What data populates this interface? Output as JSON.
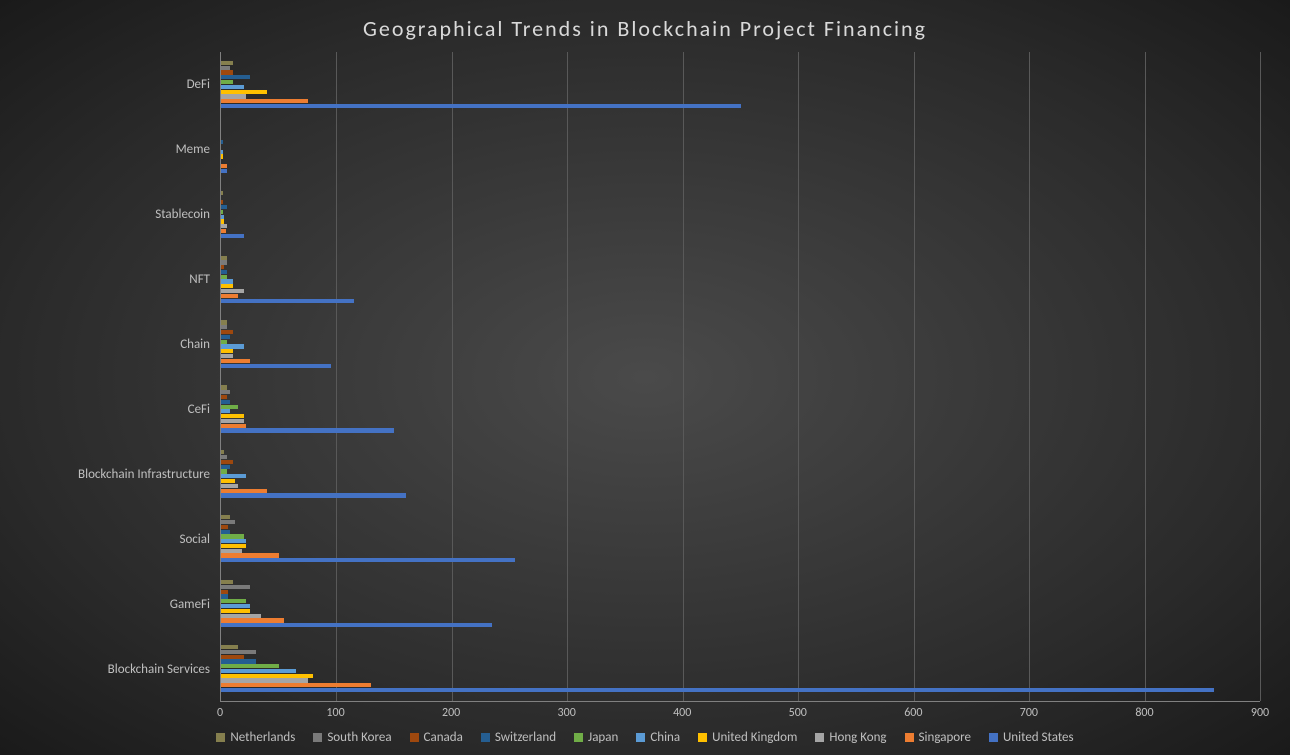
{
  "chart": {
    "type": "grouped-horizontal-bar",
    "title": "Geographical Trends in Blockchain Project Financing",
    "title_fontsize": 22,
    "title_color": "#d9d9d9",
    "background": "radial-gradient(#4a4a4a,#1a1a1a)",
    "grid_color": "#595959",
    "axis_color": "#808080",
    "tick_font_color": "#bfbfbf",
    "tick_fontsize": 12,
    "label_fontsize": 13,
    "xlim": [
      0,
      900
    ],
    "xtick_step": 100,
    "xticks": [
      0,
      100,
      200,
      300,
      400,
      500,
      600,
      700,
      800,
      900
    ],
    "categories": [
      "DeFi",
      "Meme",
      "Stablecoin",
      "NFT",
      "Chain",
      "CeFi",
      "Blockchain Infrastructure",
      "Social",
      "GameFi",
      "Blockchain Services"
    ],
    "series": [
      {
        "name": "Netherlands",
        "color": "#857f4e"
      },
      {
        "name": "South Korea",
        "color": "#7a7a7a"
      },
      {
        "name": "Canada",
        "color": "#9e480e"
      },
      {
        "name": "Switzerland",
        "color": "#255e91"
      },
      {
        "name": "Japan",
        "color": "#70ad47"
      },
      {
        "name": "China",
        "color": "#5b9bd5"
      },
      {
        "name": "United Kingdom",
        "color": "#ffc000"
      },
      {
        "name": "Hong Kong",
        "color": "#a5a5a5"
      },
      {
        "name": "Singapore",
        "color": "#ed7d31"
      },
      {
        "name": "United States",
        "color": "#4472c4"
      }
    ],
    "series_bar_height": 4.2,
    "data": {
      "DeFi": {
        "Netherlands": 10,
        "South Korea": 8,
        "Canada": 10,
        "Switzerland": 25,
        "Japan": 10,
        "China": 20,
        "United Kingdom": 40,
        "Hong Kong": 22,
        "Singapore": 75,
        "United States": 450
      },
      "Meme": {
        "Netherlands": 0,
        "South Korea": 0,
        "Canada": 0,
        "Switzerland": 2,
        "Japan": 0,
        "China": 2,
        "United Kingdom": 2,
        "Hong Kong": 0,
        "Singapore": 5,
        "United States": 5
      },
      "Stablecoin": {
        "Netherlands": 2,
        "South Korea": 0,
        "Canada": 2,
        "Switzerland": 5,
        "Japan": 2,
        "China": 3,
        "United Kingdom": 3,
        "Hong Kong": 5,
        "Singapore": 4,
        "United States": 20
      },
      "NFT": {
        "Netherlands": 5,
        "South Korea": 5,
        "Canada": 3,
        "Switzerland": 5,
        "Japan": 5,
        "China": 10,
        "United Kingdom": 10,
        "Hong Kong": 20,
        "Singapore": 15,
        "United States": 115
      },
      "Chain": {
        "Netherlands": 5,
        "South Korea": 5,
        "Canada": 10,
        "Switzerland": 8,
        "Japan": 5,
        "China": 20,
        "United Kingdom": 10,
        "Hong Kong": 10,
        "Singapore": 25,
        "United States": 95
      },
      "CeFi": {
        "Netherlands": 5,
        "South Korea": 8,
        "Canada": 5,
        "Switzerland": 8,
        "Japan": 15,
        "China": 8,
        "United Kingdom": 20,
        "Hong Kong": 20,
        "Singapore": 22,
        "United States": 150
      },
      "Blockchain Infrastructure": {
        "Netherlands": 3,
        "South Korea": 5,
        "Canada": 10,
        "Switzerland": 8,
        "Japan": 5,
        "China": 22,
        "United Kingdom": 12,
        "Hong Kong": 15,
        "Singapore": 40,
        "United States": 160
      },
      "Social": {
        "Netherlands": 8,
        "South Korea": 12,
        "Canada": 6,
        "Switzerland": 8,
        "Japan": 20,
        "China": 22,
        "United Kingdom": 22,
        "Hong Kong": 18,
        "Singapore": 50,
        "United States": 255
      },
      "GameFi": {
        "Netherlands": 10,
        "South Korea": 25,
        "Canada": 6,
        "Switzerland": 6,
        "Japan": 22,
        "China": 25,
        "United Kingdom": 25,
        "Hong Kong": 35,
        "Singapore": 55,
        "United States": 235
      },
      "Blockchain Services": {
        "Netherlands": 15,
        "South Korea": 30,
        "Canada": 20,
        "Switzerland": 30,
        "Japan": 50,
        "China": 65,
        "United Kingdom": 80,
        "Hong Kong": 75,
        "Singapore": 130,
        "United States": 860
      }
    }
  }
}
